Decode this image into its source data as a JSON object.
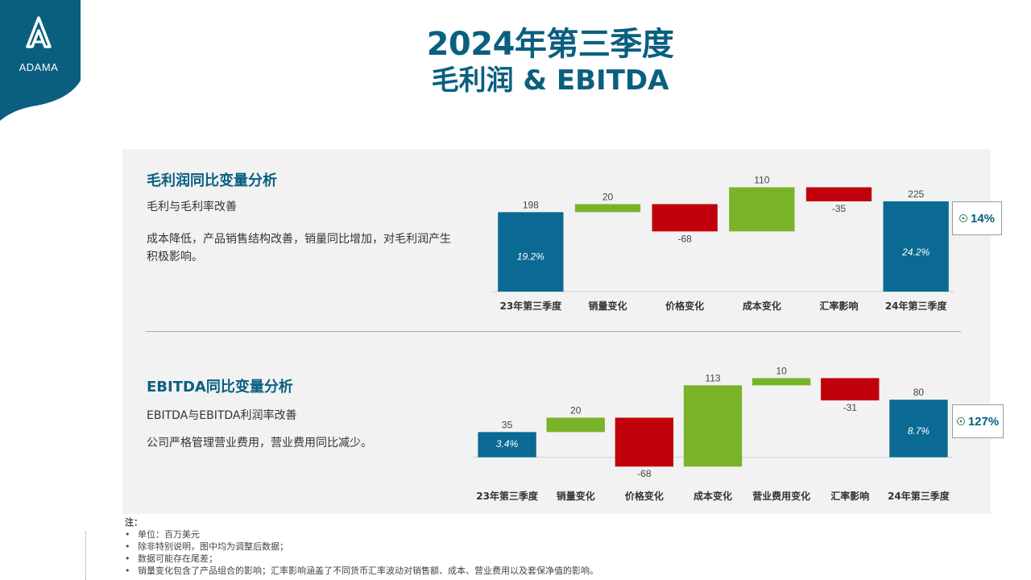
{
  "brand": {
    "name": "ADAMA",
    "color": "#0a5f80"
  },
  "header": {
    "title_line1": "2024年第三季度",
    "title_line2": "毛利润 & EBITDA"
  },
  "gross_profit": {
    "section_title": "毛利润同比变量分析",
    "subtitle": "毛利与毛利率改善",
    "description": "成本降低，产品销售结构改善，销量同比增加，对毛利润产生积极影响。",
    "change_label": "14%"
  },
  "ebitda": {
    "section_title": "EBITDA同比变量分析",
    "subtitle": "EBITDA与EBITDA利润率改善",
    "description": "公司严格管理营业费用，营业费用同比减少。",
    "change_label": "127%"
  },
  "notes": {
    "heading": "注：",
    "items": [
      "单位：百万美元",
      "除非特别说明，图中均为调整后数据；",
      "数据可能存在尾差；",
      "销量变化包含了产品组合的影响；汇率影响涵盖了不同货币汇率波动对销售额、成本、营业费用以及套保净值的影响。"
    ]
  },
  "colors": {
    "total": "#0a6a93",
    "increase": "#7ab32a",
    "decrease": "#c0000b"
  },
  "chart_data": [
    {
      "type": "bar",
      "subtype": "waterfall",
      "title": "毛利润同比变量分析",
      "unit": "百万美元",
      "categories": [
        "23年第三季度",
        "销量变化",
        "价格变化",
        "成本变化",
        "汇率影响",
        "24年第三季度"
      ],
      "values": [
        198,
        20,
        -68,
        110,
        -35,
        225
      ],
      "value_labels": [
        "198",
        "20",
        "-68",
        "110",
        "-35",
        "225"
      ],
      "kinds": [
        "total",
        "increase",
        "decrease",
        "increase",
        "decrease",
        "total"
      ],
      "margins": [
        "19.2%",
        null,
        null,
        null,
        null,
        "24.2%"
      ],
      "ylim": [
        0,
        265
      ]
    },
    {
      "type": "bar",
      "subtype": "waterfall",
      "title": "EBITDA同比变量分析",
      "unit": "百万美元",
      "categories": [
        "23年第三季度",
        "销量变化",
        "价格变化",
        "成本变化",
        "营业费用变化",
        "汇率影响",
        "24年第三季度"
      ],
      "values": [
        35,
        20,
        -68,
        113,
        10,
        -31,
        80
      ],
      "value_labels": [
        "35",
        "20",
        "-68",
        "113",
        "10",
        "-31",
        "80"
      ],
      "kinds": [
        "total",
        "increase",
        "decrease",
        "increase",
        "increase",
        "decrease",
        "total"
      ],
      "margins": [
        "3.4%",
        null,
        null,
        null,
        null,
        null,
        "8.7%"
      ],
      "ylim": [
        -15,
        125
      ]
    }
  ]
}
